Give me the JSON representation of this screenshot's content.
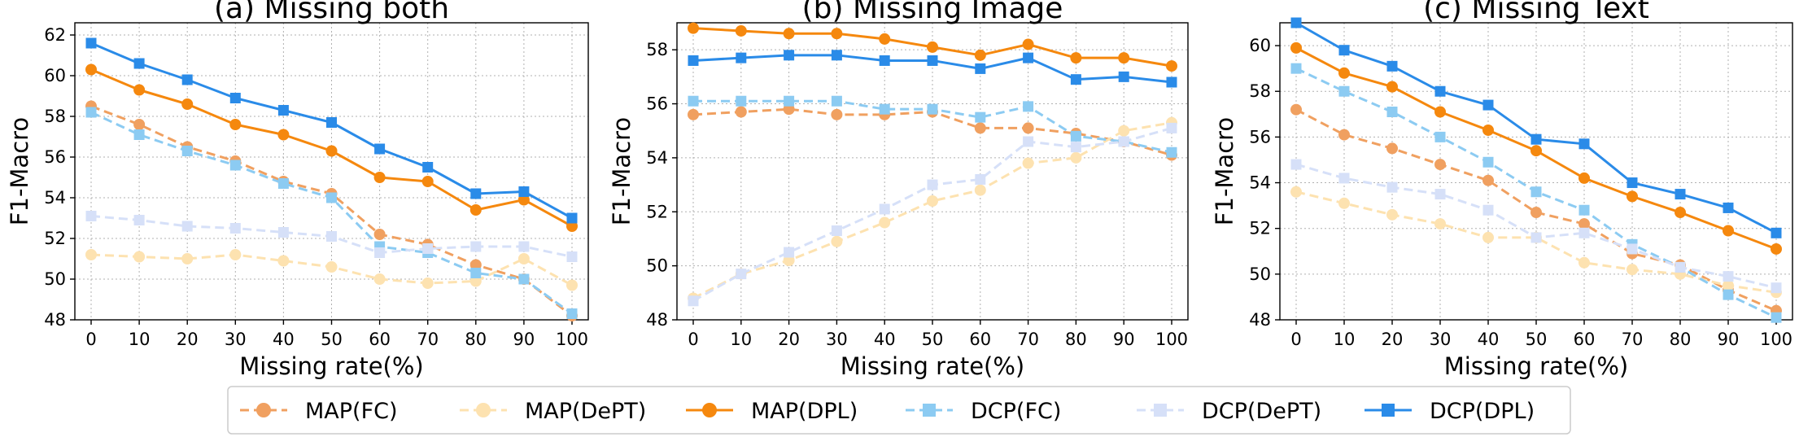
{
  "legend": {
    "items": [
      {
        "name": "MAP(FC)",
        "color": "#f0a060",
        "dash": true,
        "marker": "circle"
      },
      {
        "name": "MAP(DePT)",
        "color": "#fde2b0",
        "dash": true,
        "marker": "circle"
      },
      {
        "name": "MAP(DPL)",
        "color": "#f5880e",
        "dash": false,
        "marker": "circle"
      },
      {
        "name": "DCP(FC)",
        "color": "#8ccbf2",
        "dash": true,
        "marker": "square"
      },
      {
        "name": "DCP(DePT)",
        "color": "#d6e0f8",
        "dash": true,
        "marker": "square"
      },
      {
        "name": "DCP(DPL)",
        "color": "#2a8be8",
        "dash": false,
        "marker": "square"
      }
    ]
  },
  "chart_data": [
    {
      "type": "line",
      "title": "(a) Missing both",
      "xlabel": "Missing rate(%)",
      "ylabel": "F1-Macro",
      "x": [
        0,
        10,
        20,
        30,
        40,
        50,
        60,
        70,
        80,
        90,
        100
      ],
      "xticks": [
        "0",
        "10",
        "20",
        "30",
        "40",
        "50",
        "60",
        "70",
        "80",
        "90",
        "100"
      ],
      "ylim": [
        48,
        62.6
      ],
      "yticks": [
        48,
        50,
        52,
        54,
        56,
        58,
        60,
        62
      ],
      "series": [
        {
          "name": "MAP(FC)",
          "values": [
            58.5,
            57.6,
            56.5,
            55.8,
            54.8,
            54.2,
            52.2,
            51.7,
            50.7,
            50.0,
            48.2
          ]
        },
        {
          "name": "MAP(DePT)",
          "values": [
            51.2,
            51.1,
            51.0,
            51.2,
            50.9,
            50.6,
            50.0,
            49.8,
            49.9,
            51.0,
            49.7
          ]
        },
        {
          "name": "MAP(DPL)",
          "values": [
            60.3,
            59.3,
            58.6,
            57.6,
            57.1,
            56.3,
            55.0,
            54.8,
            53.4,
            53.9,
            52.6
          ]
        },
        {
          "name": "DCP(FC)",
          "values": [
            58.2,
            57.1,
            56.3,
            55.6,
            54.7,
            54.0,
            51.6,
            51.3,
            50.3,
            50.0,
            48.3
          ]
        },
        {
          "name": "DCP(DePT)",
          "values": [
            53.1,
            52.9,
            52.6,
            52.5,
            52.3,
            52.1,
            51.3,
            51.5,
            51.6,
            51.6,
            51.1
          ]
        },
        {
          "name": "DCP(DPL)",
          "values": [
            61.6,
            60.6,
            59.8,
            58.9,
            58.3,
            57.7,
            56.4,
            55.5,
            54.2,
            54.3,
            53.0
          ]
        }
      ]
    },
    {
      "type": "line",
      "title": "(b) Missing Image",
      "xlabel": "Missing rate(%)",
      "ylabel": "F1-Macro",
      "x": [
        0,
        10,
        20,
        30,
        40,
        50,
        60,
        70,
        80,
        90,
        100
      ],
      "xticks": [
        "0",
        "10",
        "20",
        "30",
        "40",
        "50",
        "60",
        "70",
        "80",
        "90",
        "100"
      ],
      "ylim": [
        48,
        59.0
      ],
      "yticks": [
        48,
        50,
        52,
        54,
        56,
        58
      ],
      "series": [
        {
          "name": "MAP(FC)",
          "values": [
            55.6,
            55.7,
            55.8,
            55.6,
            55.6,
            55.7,
            55.1,
            55.1,
            54.9,
            54.6,
            54.1
          ]
        },
        {
          "name": "MAP(DePT)",
          "values": [
            48.8,
            49.7,
            50.2,
            50.9,
            51.6,
            52.4,
            52.8,
            53.8,
            54.0,
            55.0,
            55.3
          ]
        },
        {
          "name": "MAP(DPL)",
          "values": [
            58.8,
            58.7,
            58.6,
            58.6,
            58.4,
            58.1,
            57.8,
            58.2,
            57.7,
            57.7,
            57.4
          ]
        },
        {
          "name": "DCP(FC)",
          "values": [
            56.1,
            56.1,
            56.1,
            56.1,
            55.8,
            55.8,
            55.5,
            55.9,
            54.8,
            54.6,
            54.2
          ]
        },
        {
          "name": "DCP(DePT)",
          "values": [
            48.7,
            49.7,
            50.5,
            51.3,
            52.1,
            53.0,
            53.2,
            54.6,
            54.4,
            54.6,
            55.1
          ]
        },
        {
          "name": "DCP(DPL)",
          "values": [
            57.6,
            57.7,
            57.8,
            57.8,
            57.6,
            57.6,
            57.3,
            57.7,
            56.9,
            57.0,
            56.8
          ]
        }
      ]
    },
    {
      "type": "line",
      "title": "(c) Missing Text",
      "xlabel": "Missing rate(%)",
      "ylabel": "F1-Macro",
      "x": [
        0,
        10,
        20,
        30,
        40,
        50,
        60,
        70,
        80,
        90,
        100
      ],
      "xticks": [
        "0",
        "10",
        "20",
        "30",
        "40",
        "50",
        "60",
        "70",
        "80",
        "90",
        "100"
      ],
      "ylim": [
        48,
        61.0
      ],
      "yticks": [
        48,
        50,
        52,
        54,
        56,
        58,
        60
      ],
      "series": [
        {
          "name": "MAP(FC)",
          "values": [
            57.2,
            56.1,
            55.5,
            54.8,
            54.1,
            52.7,
            52.2,
            50.9,
            50.4,
            49.3,
            48.4
          ]
        },
        {
          "name": "MAP(DePT)",
          "values": [
            53.6,
            53.1,
            52.6,
            52.2,
            51.6,
            51.6,
            50.5,
            50.2,
            50.0,
            49.5,
            49.2
          ]
        },
        {
          "name": "MAP(DPL)",
          "values": [
            59.9,
            58.8,
            58.2,
            57.1,
            56.3,
            55.4,
            54.2,
            53.4,
            52.7,
            51.9,
            51.1
          ]
        },
        {
          "name": "DCP(FC)",
          "values": [
            59.0,
            58.0,
            57.1,
            56.0,
            54.9,
            53.6,
            52.8,
            51.3,
            50.3,
            49.1,
            48.1
          ]
        },
        {
          "name": "DCP(DePT)",
          "values": [
            54.8,
            54.2,
            53.8,
            53.5,
            52.8,
            51.6,
            51.8,
            51.1,
            50.3,
            49.9,
            49.4
          ]
        },
        {
          "name": "DCP(DPL)",
          "values": [
            61.0,
            59.8,
            59.1,
            58.0,
            57.4,
            55.9,
            55.7,
            54.0,
            53.5,
            52.9,
            51.8
          ]
        }
      ]
    }
  ]
}
